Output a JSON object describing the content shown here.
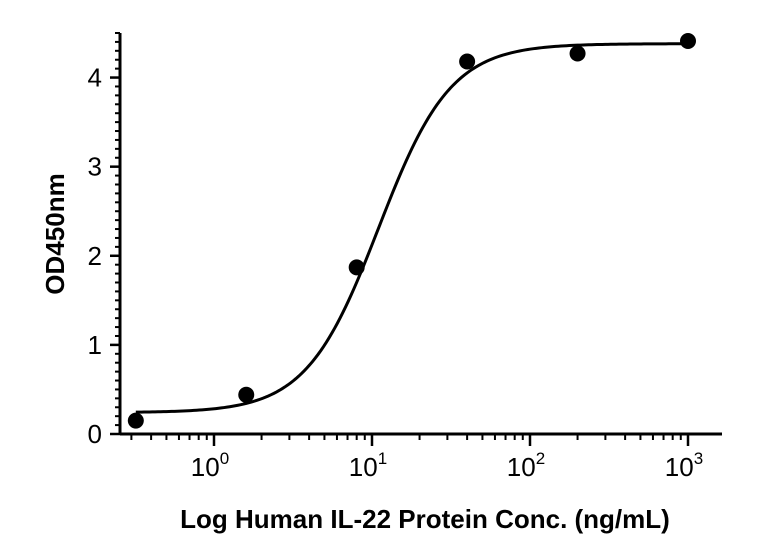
{
  "chart_data": {
    "type": "scatter",
    "title": "",
    "xlabel": "Log Human IL-22 Protein Conc. (ng/mL)",
    "ylabel": "OD450nm",
    "xscale": "log",
    "xlim": [
      0.3,
      2000
    ],
    "ylim": [
      0,
      4.5
    ],
    "x_ticks": [
      {
        "value": 1,
        "base": "10",
        "exp": "0"
      },
      {
        "value": 10,
        "base": "10",
        "exp": "1"
      },
      {
        "value": 100,
        "base": "10",
        "exp": "2"
      },
      {
        "value": 1000,
        "base": "10",
        "exp": "3"
      }
    ],
    "y_ticks": [
      {
        "value": 0,
        "label": "0"
      },
      {
        "value": 1,
        "label": "1"
      },
      {
        "value": 2,
        "label": "2"
      },
      {
        "value": 3,
        "label": "3"
      },
      {
        "value": 4,
        "label": "4"
      }
    ],
    "points": [
      {
        "x": 0.32,
        "y": 0.15
      },
      {
        "x": 1.6,
        "y": 0.44
      },
      {
        "x": 8,
        "y": 1.87
      },
      {
        "x": 40,
        "y": 4.18
      },
      {
        "x": 200,
        "y": 4.27
      },
      {
        "x": 1000,
        "y": 4.41
      }
    ],
    "fit": {
      "model": "4PL",
      "bottom": 0.24,
      "top": 4.38,
      "ec50": 11,
      "hill": 1.9
    },
    "grid": false,
    "legend": "none",
    "color": "#000000"
  }
}
